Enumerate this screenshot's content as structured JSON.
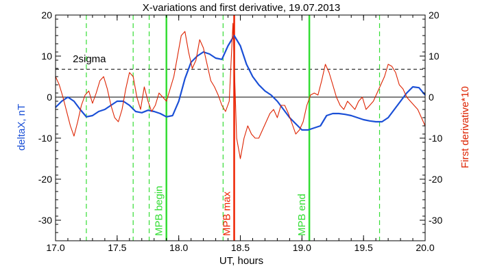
{
  "chart_data": {
    "type": "line",
    "title": "X-variations and first derivative, 19.07.2013",
    "xlabel": "UT, hours",
    "ylabel_left": "deltaX, nT",
    "ylabel_right": "First derivative*10",
    "xlim": [
      17.0,
      20.0
    ],
    "ylim": [
      -35,
      20
    ],
    "xticks": [
      17.0,
      17.5,
      18.0,
      18.5,
      19.0,
      19.5,
      20.0
    ],
    "yticks": [
      -30,
      -20,
      -10,
      0,
      10,
      20
    ],
    "colors": {
      "deltaX": "#1a4fd6",
      "derivative": "#dd2200",
      "green": "#33dd33",
      "red_line": "#ee2200",
      "axis": "#000000"
    },
    "reference_lines": [
      {
        "y": 0,
        "style": "solid"
      },
      {
        "y": 6.8,
        "style": "dashed",
        "label": "2sigma"
      }
    ],
    "dashed_green_verticals": [
      17.25,
      17.63,
      17.76,
      18.36,
      19.63
    ],
    "markers": [
      {
        "x": 17.9,
        "label": "MPB begin",
        "color": "#33dd33"
      },
      {
        "x": 18.45,
        "label": "MPB max",
        "color": "#ee2200"
      },
      {
        "x": 19.06,
        "label": "MPB end",
        "color": "#33dd33"
      }
    ],
    "series": [
      {
        "name": "deltaX",
        "color": "#1a4fd6",
        "x": [
          17.0,
          17.05,
          17.1,
          17.15,
          17.2,
          17.25,
          17.3,
          17.35,
          17.4,
          17.45,
          17.5,
          17.55,
          17.6,
          17.65,
          17.7,
          17.75,
          17.8,
          17.85,
          17.9,
          17.95,
          18.0,
          18.05,
          18.1,
          18.15,
          18.2,
          18.25,
          18.3,
          18.35,
          18.4,
          18.45,
          18.5,
          18.55,
          18.6,
          18.65,
          18.7,
          18.75,
          18.8,
          18.85,
          18.9,
          18.95,
          19.0,
          19.05,
          19.1,
          19.15,
          19.2,
          19.25,
          19.3,
          19.35,
          19.4,
          19.45,
          19.5,
          19.55,
          19.6,
          19.65,
          19.7,
          19.75,
          19.8,
          19.85,
          19.9,
          19.95,
          20.0
        ],
        "values": [
          -2.5,
          -1.0,
          0.0,
          -1.0,
          -3.0,
          -4.8,
          -4.5,
          -3.5,
          -3.0,
          -2.0,
          -1.0,
          -1.0,
          -2.0,
          -3.5,
          -3.8,
          -3.2,
          -3.5,
          -4.0,
          -4.8,
          -4.5,
          -1.0,
          4.5,
          8.5,
          10.0,
          11.0,
          10.5,
          9.5,
          9.2,
          12.5,
          15.0,
          12.5,
          8.0,
          5.0,
          3.0,
          1.5,
          0.5,
          -1.0,
          -3.0,
          -5.0,
          -6.5,
          -8.0,
          -8.0,
          -7.5,
          -7.0,
          -4.5,
          -4.0,
          -4.0,
          -4.2,
          -4.5,
          -5.0,
          -5.5,
          -5.8,
          -6.0,
          -6.0,
          -5.0,
          -3.0,
          -1.0,
          1.0,
          2.5,
          2.3,
          0.5
        ]
      },
      {
        "name": "First derivative*10",
        "color": "#dd2200",
        "x": [
          17.0,
          17.03,
          17.06,
          17.09,
          17.12,
          17.15,
          17.18,
          17.21,
          17.24,
          17.27,
          17.3,
          17.33,
          17.36,
          17.39,
          17.42,
          17.45,
          17.48,
          17.51,
          17.54,
          17.57,
          17.6,
          17.63,
          17.66,
          17.69,
          17.72,
          17.75,
          17.78,
          17.81,
          17.84,
          17.87,
          17.9,
          17.93,
          17.96,
          17.99,
          18.02,
          18.05,
          18.08,
          18.11,
          18.14,
          18.17,
          18.2,
          18.23,
          18.26,
          18.29,
          18.32,
          18.35,
          18.38,
          18.41,
          18.44,
          18.47,
          18.5,
          18.53,
          18.56,
          18.59,
          18.62,
          18.65,
          18.68,
          18.71,
          18.74,
          18.77,
          18.8,
          18.83,
          18.86,
          18.89,
          18.92,
          18.95,
          18.98,
          19.01,
          19.04,
          19.07,
          19.1,
          19.13,
          19.16,
          19.19,
          19.22,
          19.25,
          19.28,
          19.31,
          19.34,
          19.37,
          19.4,
          19.43,
          19.46,
          19.49,
          19.52,
          19.55,
          19.58,
          19.61,
          19.64,
          19.67,
          19.7,
          19.73,
          19.76,
          19.79,
          19.82,
          19.85,
          19.88,
          19.91,
          19.94,
          19.97,
          20.0
        ],
        "values": [
          5.0,
          3.0,
          0.0,
          -3.5,
          -7.0,
          -9.5,
          -6.0,
          -2.0,
          0.5,
          1.5,
          -1.5,
          1.0,
          4.0,
          5.0,
          2.0,
          -2.0,
          -5.0,
          -6.0,
          -3.0,
          2.0,
          6.0,
          5.0,
          0.0,
          -3.0,
          2.5,
          -1.0,
          -3.5,
          -2.0,
          1.0,
          0.0,
          -1.0,
          2.0,
          5.0,
          10.0,
          15.0,
          16.0,
          11.0,
          7.0,
          9.0,
          14.0,
          12.0,
          8.0,
          4.0,
          2.5,
          0.5,
          -2.0,
          -3.5,
          -1.0,
          18.0,
          -10.0,
          -15.0,
          -10.0,
          -7.0,
          -9.0,
          -10.0,
          -10.0,
          -8.0,
          -6.0,
          -4.0,
          -3.0,
          -5.0,
          -2.0,
          -2.0,
          -4.0,
          -6.5,
          -9.0,
          -8.0,
          -6.0,
          -2.0,
          0.5,
          1.0,
          0.5,
          4.0,
          8.0,
          6.0,
          3.0,
          0.0,
          -2.0,
          -3.0,
          -1.0,
          -2.0,
          -3.0,
          -1.0,
          0.0,
          -3.0,
          -2.0,
          -1.0,
          1.0,
          3.0,
          5.0,
          8.0,
          7.5,
          6.0,
          3.0,
          2.0,
          0.0,
          -1.0,
          -2.0,
          -3.0,
          -5.0,
          -7.0
        ]
      }
    ]
  }
}
